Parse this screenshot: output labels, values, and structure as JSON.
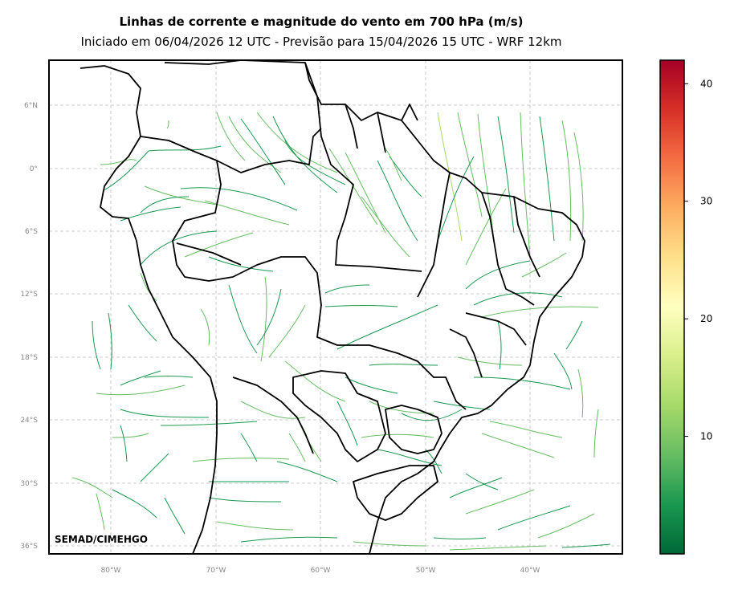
{
  "header": {
    "title": "Linhas de corrente e magnitude do vento em 700 hPa (m/s)",
    "subtitle": "Iniciado em 06/04/2026 12 UTC - Previsão para 15/04/2026 15 UTC - WRF 12km"
  },
  "map": {
    "credit": "SEMAD/CIMEHGO",
    "lat_labels": [
      "6°N",
      "0°",
      "6°S",
      "12°S",
      "18°S",
      "24°S",
      "30°S",
      "36°S"
    ],
    "lon_labels": [
      "80°W",
      "70°W",
      "60°W",
      "50°W",
      "40°W"
    ],
    "grid": true,
    "field": "streamlines colored by wind speed"
  },
  "colorbar": {
    "ticks": [
      "10",
      "20",
      "30",
      "40"
    ],
    "min": 0,
    "max": 42,
    "colormap": "RdYlGn_r",
    "colors": [
      "#006837",
      "#1a9850",
      "#66bd63",
      "#a6d96a",
      "#d9ef8b",
      "#ffffbf",
      "#fee08b",
      "#fdae61",
      "#f46d43",
      "#d73027",
      "#a50026"
    ]
  }
}
